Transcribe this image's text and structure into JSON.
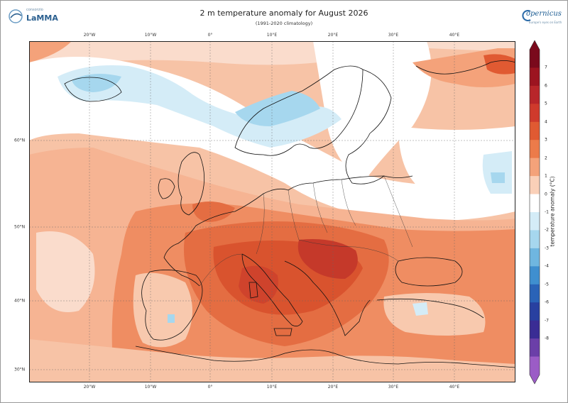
{
  "header": {
    "title": "2 m temperature anomaly for August 2026",
    "subtitle": "(1991-2020 climatology)"
  },
  "logos": {
    "left": {
      "main": "LaMMA",
      "small": "consorzio",
      "icon": "lamma-logo-icon"
    },
    "right": {
      "main": "opernicus",
      "small": "Europe's eyes on Earth",
      "icon": "copernicus-logo-icon"
    }
  },
  "map": {
    "longitude_labels": [
      "20°W",
      "10°W",
      "0°",
      "10°E",
      "20°E",
      "30°E",
      "40°E"
    ],
    "latitude_labels": [
      "60°N",
      "50°N",
      "40°N",
      "30°N"
    ],
    "gridlines": true
  },
  "colorbar": {
    "label": "temperature anomaly (°C)",
    "ticks": [
      "7",
      "6",
      "5",
      "4",
      "3",
      "2",
      "1",
      "0",
      "-1",
      "-2",
      "-3",
      "-4",
      "-5",
      "-6",
      "-7",
      "-8"
    ],
    "extend": "both",
    "colors": [
      "#7a0a1c",
      "#9c1420",
      "#b8262a",
      "#cf3a2c",
      "#e05a32",
      "#ec7b4a",
      "#f4a27a",
      "#fad0b8",
      "#ffffff",
      "#d4ecf7",
      "#a6d7ee",
      "#6fb6e0",
      "#3f8fcf",
      "#2a63b7",
      "#2840a0",
      "#3a2c94",
      "#6b3fa8",
      "#9b5cc6"
    ]
  }
}
